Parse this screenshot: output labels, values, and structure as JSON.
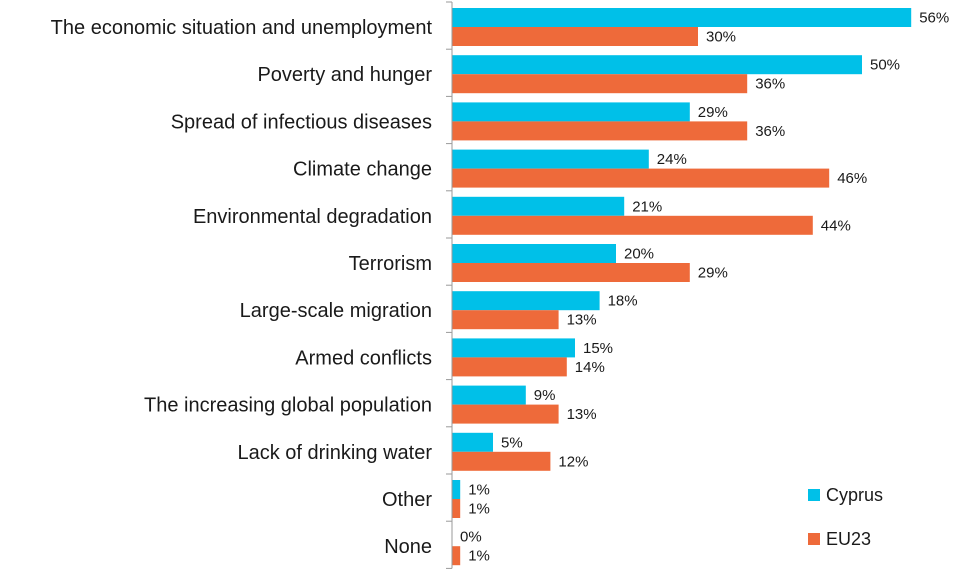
{
  "chart_data": {
    "type": "bar",
    "orientation": "horizontal",
    "categories": [
      "The economic situation and unemployment",
      "Poverty and hunger",
      "Spread of infectious diseases",
      "Climate change",
      "Environmental degradation",
      "Terrorism",
      "Large-scale migration",
      "Armed conflicts",
      "The increasing global population",
      "Lack of drinking water",
      "Other",
      "None"
    ],
    "series": [
      {
        "name": "Cyprus",
        "color": "#00c0e8",
        "values": [
          56,
          50,
          29,
          24,
          21,
          20,
          18,
          15,
          9,
          5,
          1,
          0
        ],
        "labels": [
          "56%",
          "50%",
          "29%",
          "24%",
          "21%",
          "20%",
          "18%",
          "15%",
          "9%",
          "5%",
          "1%",
          "0%"
        ]
      },
      {
        "name": "EU23",
        "color": "#ee6a3a",
        "values": [
          30,
          36,
          36,
          46,
          44,
          29,
          13,
          14,
          13,
          12,
          1,
          1
        ],
        "labels": [
          "30%",
          "36%",
          "36%",
          "46%",
          "44%",
          "29%",
          "13%",
          "14%",
          "13%",
          "12%",
          "1%",
          "1%"
        ]
      }
    ],
    "xlim": [
      0,
      56
    ],
    "grid": false,
    "legend_position": "bottom-right"
  }
}
